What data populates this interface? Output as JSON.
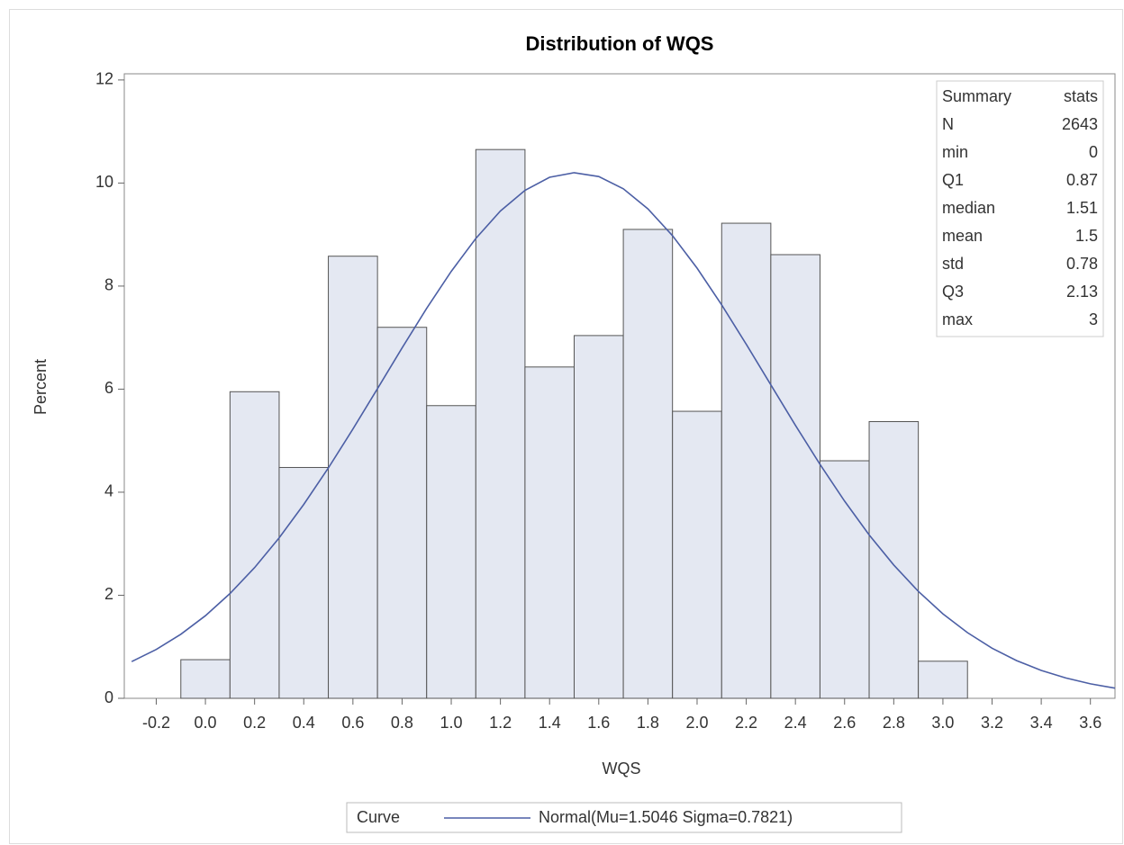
{
  "chart_data": {
    "type": "histogram",
    "title": "Distribution of WQS",
    "xlabel": "WQS",
    "ylabel": "Percent",
    "bins": [
      -0.1,
      0.1,
      0.3,
      0.5,
      0.7,
      0.9,
      1.1,
      1.3,
      1.5,
      1.7,
      1.9,
      2.1,
      2.3,
      2.5,
      2.7,
      2.9,
      3.1
    ],
    "values": [
      0.75,
      5.95,
      4.48,
      8.58,
      7.2,
      5.68,
      10.65,
      6.43,
      7.04,
      9.1,
      5.57,
      9.22,
      8.61,
      4.61,
      5.37,
      0.72
    ],
    "color": "#e4e8f2",
    "curve": {
      "name": "Normal(Mu=1.5046 Sigma=0.7821)",
      "color": "#4c5fa5",
      "x": [
        -0.3,
        -0.2,
        -0.1,
        0,
        0.1,
        0.2,
        0.3,
        0.4,
        0.5,
        0.6,
        0.7,
        0.8,
        0.9,
        1,
        1.1,
        1.2,
        1.3,
        1.4,
        1.5,
        1.6,
        1.7,
        1.8,
        1.9,
        2,
        2.1,
        2.2,
        2.3,
        2.4,
        2.5,
        2.6,
        2.7,
        2.8,
        2.9,
        3,
        3.1,
        3.2,
        3.3,
        3.4,
        3.5,
        3.6,
        3.7
      ],
      "y": [
        0.712,
        0.949,
        1.244,
        1.603,
        2.034,
        2.538,
        3.116,
        3.763,
        4.471,
        5.226,
        6.01,
        6.798,
        7.567,
        8.285,
        8.924,
        9.456,
        9.858,
        10.111,
        10.201,
        10.126,
        9.888,
        9.499,
        8.978,
        8.347,
        7.635,
        6.87,
        6.082,
        5.297,
        4.539,
        3.826,
        3.172,
        2.588,
        2.077,
        1.64,
        1.274,
        0.973,
        0.732,
        0.541,
        0.394,
        0.282,
        0.198
      ]
    },
    "legend_title": "Curve",
    "xlim": [
      -0.33,
      3.7
    ],
    "ylim": [
      0,
      12.12
    ],
    "xticks": [
      -0.2,
      {
        "value": 0,
        "label": "0.0"
      },
      0.2,
      0.4,
      0.6,
      0.8,
      {
        "value": 1,
        "label": "1.0"
      },
      1.2,
      1.4,
      1.6,
      1.8,
      {
        "value": 2,
        "label": "2.0"
      },
      2.2,
      2.4,
      2.6,
      2.8,
      {
        "value": 3,
        "label": "3.0"
      },
      3.2,
      3.4,
      3.6
    ],
    "yticks": [
      0,
      2,
      4,
      6,
      8,
      10,
      12
    ],
    "inset": {
      "header": [
        "Summary",
        "stats"
      ],
      "rows": [
        [
          "N",
          2643
        ],
        [
          "min",
          0
        ],
        [
          "Q1",
          0.87
        ],
        [
          "median",
          1.51
        ],
        [
          "mean",
          1.5
        ],
        [
          "std",
          0.78
        ],
        [
          "Q3",
          2.13
        ],
        [
          "max",
          3
        ]
      ]
    }
  }
}
